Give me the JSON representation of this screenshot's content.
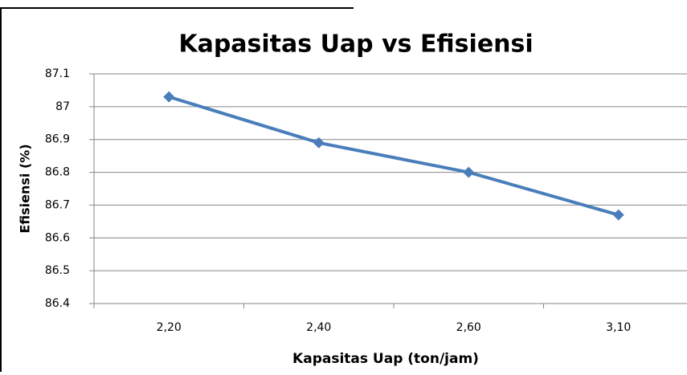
{
  "chart_data": {
    "type": "line",
    "title": "Kapasitas Uap vs Efisiensi",
    "x_label": "Kapasitas Uap (ton/jam)",
    "y_label": "Efisiensi (%)",
    "categories": [
      "2,20",
      "2,40",
      "2,60",
      "3,10"
    ],
    "series": [
      {
        "name": "Efisiensi",
        "color": "#4a7ebb",
        "values": [
          87.03,
          86.89,
          86.8,
          86.67
        ]
      }
    ],
    "ylim": [
      86.4,
      87.1
    ],
    "yticks": [
      86.4,
      86.5,
      86.6,
      86.7,
      86.8,
      86.9,
      87,
      87.1
    ],
    "grid": true
  }
}
